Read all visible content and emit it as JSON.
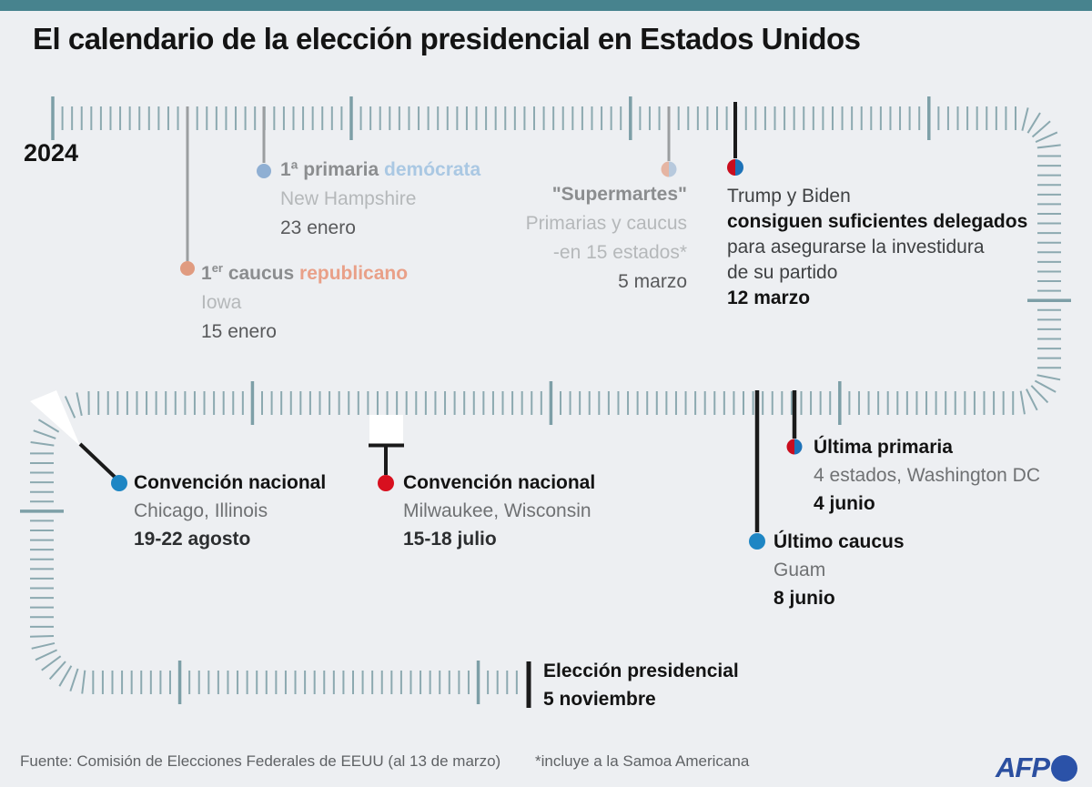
{
  "title": "El calendario de la elección presidencial en Estados Unidos",
  "year_label": "2024",
  "colors": {
    "background": "#edeff2",
    "top_bar": "#47838e",
    "tick": "#8ca9b0",
    "tick_month": "#7d9fa7",
    "leader_gray": "#9b9ea0",
    "black": "#1a1a1a",
    "white": "#ffffff",
    "dot_salmon": "#e09b80",
    "dot_blue_light": "#8fafd3",
    "dot_salmon_faded": "#e5b5a3",
    "dot_blue_faded": "#b7c9dd",
    "red": "#c90d1e",
    "blue": "#1d72b8",
    "dot_blue_solid": "#1e86c4",
    "dot_red_solid": "#d8101f",
    "afp_blue": "#2b4fa0"
  },
  "events": {
    "primaria_democrata": {
      "title": "1ª primaria",
      "highlight": "demócrata",
      "location": "New Hampshire",
      "date": "23 enero"
    },
    "caucus_republicano": {
      "num": "1",
      "sup": "er",
      "title_rest": " caucus",
      "highlight": "republicano",
      "location": "Iowa",
      "date": "15 enero"
    },
    "supermartes": {
      "title": "\"Supermartes\"",
      "line2": "Primarias y caucus",
      "line3": "-en 15 estados*",
      "date": "5 marzo"
    },
    "delegados": {
      "line1": "Trump y Biden",
      "line2": "consiguen suficientes delegados",
      "line3": "para asegurarse la investidura",
      "line4": "de su partido",
      "date": "12 marzo"
    },
    "ultima_primaria": {
      "title": "Última primaria",
      "location": "4 estados, Washington DC",
      "date": "4 junio"
    },
    "ultimo_caucus": {
      "title": "Último caucus",
      "location": "Guam",
      "date": "8 junio"
    },
    "convencion_republicana": {
      "title": "Convención nacional",
      "location": "Milwaukee, Wisconsin",
      "date": "15-18 julio"
    },
    "convencion_democrata": {
      "title": "Convención nacional",
      "location": "Chicago, Illinois",
      "date": "19-22 agosto"
    },
    "eleccion": {
      "title": "Elección presidencial",
      "date": "5 noviembre"
    }
  },
  "footer": {
    "source": "Fuente: Comisión de Elecciones Federales de EEUU (al 13 de marzo)",
    "note": "*incluye a la Samoa Americana",
    "agency": "AFP"
  }
}
